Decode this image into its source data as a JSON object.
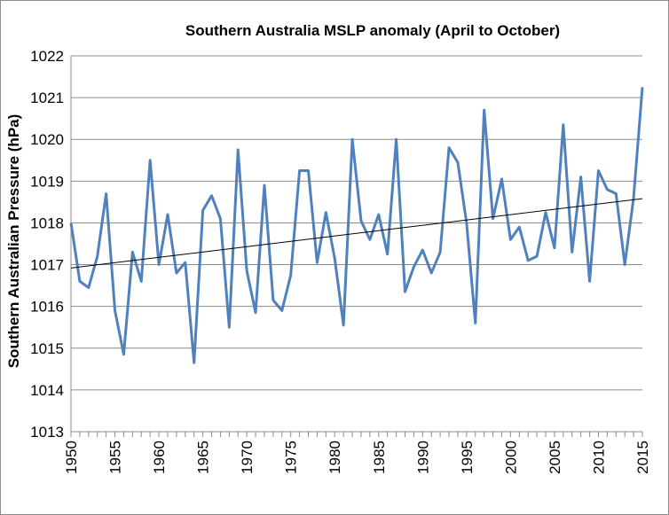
{
  "chart_data": {
    "type": "line",
    "title": "Southern Australia MSLP anomaly (April to  October)",
    "xlabel": "",
    "ylabel": "Southern Australian Pressure (hPa)",
    "xlim": [
      1950,
      2015
    ],
    "ylim": [
      1013,
      1022
    ],
    "y_ticks": [
      1013,
      1014,
      1015,
      1016,
      1017,
      1018,
      1019,
      1020,
      1021,
      1022
    ],
    "x_ticks": [
      1950,
      1955,
      1960,
      1965,
      1970,
      1975,
      1980,
      1985,
      1990,
      1995,
      2000,
      2005,
      2010,
      2015
    ],
    "grid": "horizontal",
    "series": [
      {
        "color": "#4f81bd",
        "x": [
          1950,
          1951,
          1952,
          1953,
          1954,
          1955,
          1956,
          1957,
          1958,
          1959,
          1960,
          1961,
          1962,
          1963,
          1964,
          1965,
          1966,
          1967,
          1968,
          1969,
          1970,
          1971,
          1972,
          1973,
          1974,
          1975,
          1976,
          1977,
          1978,
          1979,
          1980,
          1981,
          1982,
          1983,
          1984,
          1985,
          1986,
          1987,
          1988,
          1989,
          1990,
          1991,
          1992,
          1993,
          1994,
          1995,
          1996,
          1997,
          1998,
          1999,
          2000,
          2001,
          2002,
          2003,
          2004,
          2005,
          2006,
          2007,
          2008,
          2009,
          2010,
          2011,
          2012,
          2013,
          2014,
          2015
        ],
        "values": [
          1018.0,
          1016.6,
          1016.45,
          1017.2,
          1018.7,
          1015.9,
          1014.85,
          1017.3,
          1016.6,
          1019.5,
          1017.0,
          1018.2,
          1016.8,
          1017.05,
          1014.65,
          1018.3,
          1018.65,
          1018.1,
          1015.5,
          1019.75,
          1016.85,
          1015.85,
          1018.9,
          1016.15,
          1015.9,
          1016.75,
          1019.25,
          1019.25,
          1017.05,
          1018.25,
          1017.15,
          1015.55,
          1020.0,
          1018.05,
          1017.6,
          1018.2,
          1017.25,
          1020.0,
          1016.35,
          1016.95,
          1017.35,
          1016.8,
          1017.3,
          1019.8,
          1019.45,
          1018.0,
          1015.6,
          1020.7,
          1018.1,
          1019.05,
          1017.6,
          1017.9,
          1017.1,
          1017.2,
          1018.25,
          1017.4,
          1020.35,
          1017.3,
          1019.1,
          1016.6,
          1019.25,
          1018.8,
          1018.7,
          1017.0,
          1018.6,
          1021.25
        ]
      }
    ],
    "trendline": {
      "color": "#000000",
      "x": [
        1950,
        2015
      ],
      "values": [
        1016.92,
        1018.58
      ]
    }
  }
}
